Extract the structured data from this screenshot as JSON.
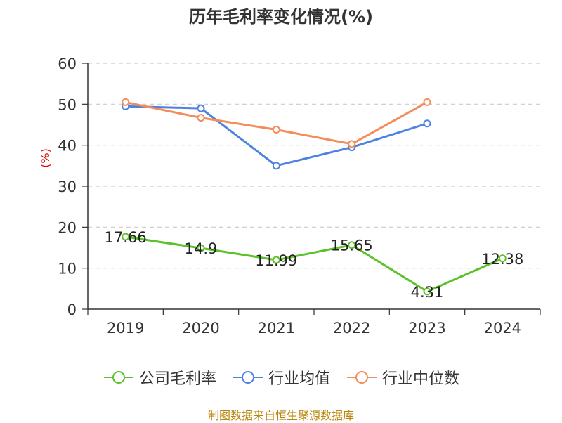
{
  "chart_data": {
    "type": "line",
    "title": "历年毛利率变化情况(%)",
    "ylabel": "(%)",
    "categories": [
      "2019",
      "2020",
      "2021",
      "2022",
      "2023",
      "2024"
    ],
    "ylim": [
      0,
      60
    ],
    "yticks": [
      0,
      10,
      20,
      30,
      40,
      50,
      60
    ],
    "grid": true,
    "legend_position": "bottom",
    "series": [
      {
        "name": "公司毛利率",
        "color": "#5cc229",
        "show_labels": true,
        "values": [
          17.66,
          14.9,
          11.99,
          15.65,
          4.31,
          12.38
        ]
      },
      {
        "name": "行业均值",
        "color": "#4e82e0",
        "show_labels": false,
        "values": [
          49.5,
          49.0,
          35.0,
          39.5,
          45.3,
          null
        ]
      },
      {
        "name": "行业中位数",
        "color": "#f48c5b",
        "show_labels": false,
        "values": [
          50.5,
          46.7,
          43.8,
          40.3,
          50.5,
          null
        ]
      }
    ]
  },
  "footer": {
    "source": "制图数据来自恒生聚源数据库"
  }
}
